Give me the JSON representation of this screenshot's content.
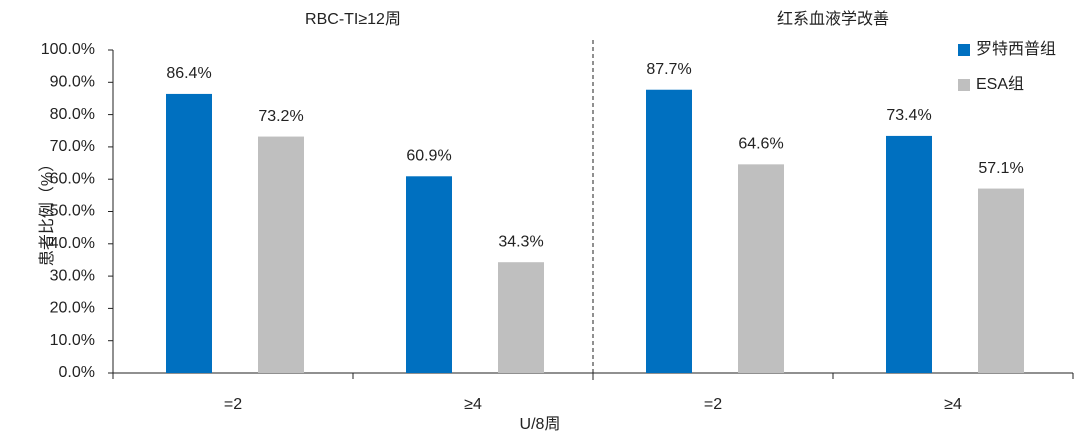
{
  "chart_data": {
    "type": "bar",
    "group_labels": [
      "RBC-TI≥12周",
      "红系血液学改善"
    ],
    "categories": [
      "=2",
      "≥4",
      "=2",
      "≥4"
    ],
    "x_label": "U/8周",
    "y_label": "患者比例（%）",
    "series": [
      {
        "name": "罗特西普组",
        "color": "#0070c0",
        "values": [
          86.4,
          60.9,
          87.7,
          73.4
        ],
        "value_labels": [
          "86.4%",
          "60.9%",
          "87.7%",
          "73.4%"
        ]
      },
      {
        "name": "ESA组",
        "color": "#bfbfbf",
        "values": [
          73.2,
          34.3,
          64.6,
          57.1
        ],
        "value_labels": [
          "73.2%",
          "34.3%",
          "64.6%",
          "57.1%"
        ]
      }
    ],
    "ylim": [
      0,
      100
    ],
    "yticks": [
      {
        "value": 0,
        "label": "0.0%"
      },
      {
        "value": 10,
        "label": "10.0%"
      },
      {
        "value": 20,
        "label": "20.0%"
      },
      {
        "value": 30,
        "label": "30.0%"
      },
      {
        "value": 40,
        "label": "40.0%"
      },
      {
        "value": 50,
        "label": "50.0%"
      },
      {
        "value": 60,
        "label": "60.0%"
      },
      {
        "value": 70,
        "label": "70.0%"
      },
      {
        "value": 80,
        "label": "80.0%"
      },
      {
        "value": 90,
        "label": "90.0%"
      },
      {
        "value": 100,
        "label": "100.0%"
      }
    ],
    "legend": "top-right"
  }
}
